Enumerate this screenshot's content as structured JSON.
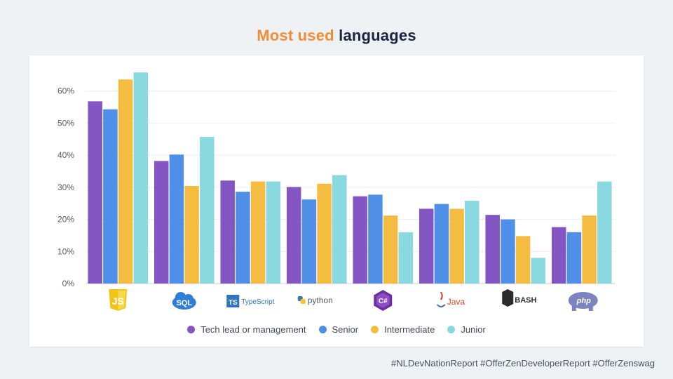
{
  "header": {
    "title_accent": "Most used",
    "title_rest": "languages"
  },
  "footer": {
    "hashtags": "#NLDevNationReport #OfferZenDeveloperReport #OfferZenswag"
  },
  "colors": {
    "title_accent": "#f28c38",
    "title_text": "#1a2340",
    "series": [
      "#8456c4",
      "#4f8fe8",
      "#f4bd41",
      "#8ad9e0"
    ]
  },
  "chart_data": {
    "type": "bar",
    "categories": [
      "JavaScript",
      "SQL",
      "TypeScript",
      "Python",
      "C#",
      "Java",
      "BASH",
      "PHP"
    ],
    "category_labels": [
      "JS",
      "SQL",
      "TypeScript",
      "python",
      "C#",
      "Java",
      "BASH",
      "php"
    ],
    "category_icons": [
      "javascript-logo-icon",
      "sql-cloud-logo-icon",
      "typescript-logo-icon",
      "python-logo-icon",
      "csharp-logo-icon",
      "java-logo-icon",
      "bash-logo-icon",
      "php-elephant-logo-icon"
    ],
    "series": [
      {
        "name": "Tech lead or management",
        "values": [
          56.8,
          38.2,
          32.1,
          30.1,
          27.2,
          23.3,
          21.4,
          17.6
        ]
      },
      {
        "name": "Senior",
        "values": [
          54.3,
          40.2,
          28.6,
          26.2,
          27.7,
          24.8,
          20.0,
          16.0
        ]
      },
      {
        "name": "Intermediate",
        "values": [
          63.6,
          30.4,
          31.8,
          31.1,
          21.2,
          23.3,
          14.8,
          21.2
        ]
      },
      {
        "name": "Junior",
        "values": [
          65.8,
          45.7,
          31.8,
          33.8,
          16.0,
          25.8,
          8.0,
          31.8
        ]
      }
    ],
    "ylim": [
      0,
      70
    ],
    "yticks": [
      0,
      10,
      20,
      30,
      40,
      50,
      60
    ],
    "ytick_labels": [
      "0%",
      "10%",
      "20%",
      "30%",
      "40%",
      "50%",
      "60%"
    ],
    "grid": true,
    "legend_position": "bottom"
  }
}
